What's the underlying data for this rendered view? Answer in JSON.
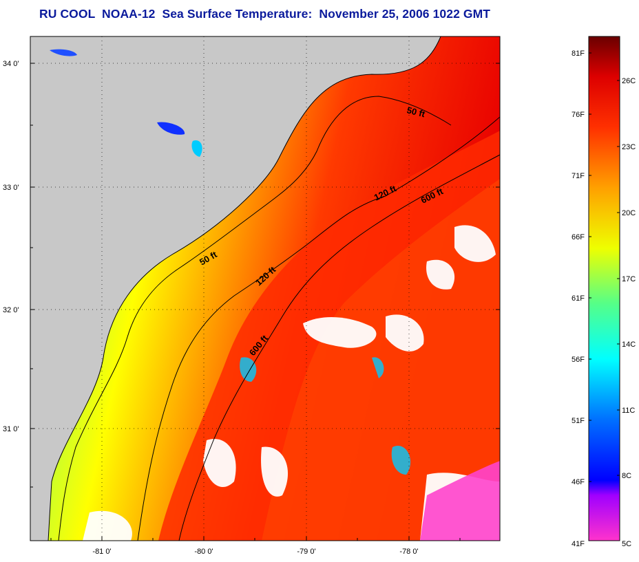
{
  "title": "RU COOL  NOAA-12  Sea Surface Temperature:  November 25, 2006 1022 GMT",
  "map": {
    "lat_labels": [
      "34 0'",
      "33 0'",
      "32 0'",
      "31 0'"
    ],
    "lon_labels": [
      "-81 0'",
      "-80 0'",
      "-79 0'",
      "-78 0'"
    ],
    "contours": [
      {
        "label": "50 ft"
      },
      {
        "label": "120 ft"
      },
      {
        "label": "600 ft"
      },
      {
        "label": "50 ft"
      },
      {
        "label": "120 ft"
      },
      {
        "label": "600 ft"
      }
    ]
  },
  "colorbar": {
    "fahrenheit_labels": [
      "81F",
      "76F",
      "71F",
      "66F",
      "61F",
      "56F",
      "51F",
      "46F",
      "41F"
    ],
    "celsius_labels": [
      "26C",
      "23C",
      "20C",
      "17C",
      "14C",
      "11C",
      "8C",
      "5C"
    ],
    "colors": [
      "#ff33cc",
      "#7a00ff",
      "#0000ff",
      "#0088ff",
      "#00ffff",
      "#66ff88",
      "#ffff00",
      "#ff9900",
      "#ff3300",
      "#7a0000"
    ]
  }
}
